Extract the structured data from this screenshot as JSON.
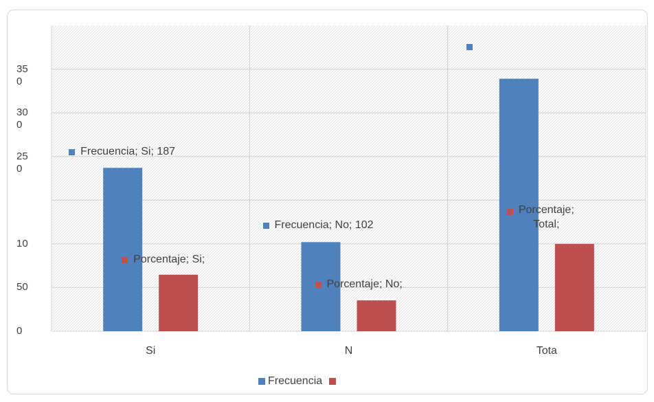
{
  "chart_data": {
    "type": "bar",
    "categories": [
      "Si",
      "N",
      "Tota"
    ],
    "series": [
      {
        "name": "Frecuencia",
        "values": [
          187,
          102,
          289
        ],
        "color": "#4f81bd"
      },
      {
        "values": [
          64.7,
          35.3,
          100
        ],
        "color": "#c0504d"
      }
    ],
    "ylim": [
      0,
      350
    ],
    "y_tick_labels": [
      "0",
      "50",
      "10",
      "",
      "25\n0",
      "30\n0",
      "35\n0"
    ],
    "data_labels": [
      {
        "text": "Frecuencia; Si; 187",
        "series": 0,
        "category": 0
      },
      {
        "text": "Porcentaje; Si;",
        "series": 1,
        "category": 0
      },
      {
        "text": "Frecuencia; No; 102",
        "series": 0,
        "category": 1
      },
      {
        "text": "Porcentaje; No;",
        "series": 1,
        "category": 1
      },
      {
        "text": "",
        "series": 0,
        "category": 2
      },
      {
        "text": "Porcentaje;\nTotal;",
        "series": 1,
        "category": 2
      }
    ],
    "grid": true,
    "legend_position": "bottom"
  }
}
